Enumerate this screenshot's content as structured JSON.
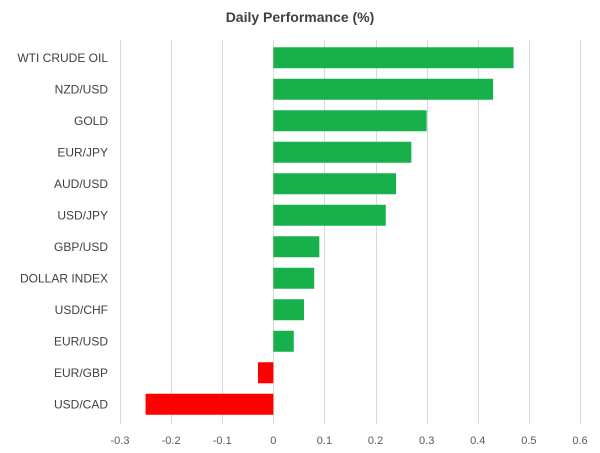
{
  "chart_data": {
    "type": "bar",
    "orientation": "horizontal",
    "title": "Daily Performance (%)",
    "xlabel": "",
    "ylabel": "",
    "categories": [
      "WTI CRUDE OIL",
      "NZD/USD",
      "GOLD",
      "EUR/JPY",
      "AUD/USD",
      "USD/JPY",
      "GBP/USD",
      "DOLLAR INDEX",
      "USD/CHF",
      "EUR/USD",
      "EUR/GBP",
      "USD/CAD"
    ],
    "values": [
      0.47,
      0.43,
      0.3,
      0.27,
      0.24,
      0.22,
      0.09,
      0.08,
      0.06,
      0.04,
      -0.03,
      -0.25
    ],
    "xlim": [
      -0.3,
      0.6
    ],
    "xticks": [
      -0.3,
      -0.2,
      -0.1,
      0,
      0.1,
      0.2,
      0.3,
      0.4,
      0.5,
      0.6
    ],
    "tick_labels": [
      "-0.3",
      "-0.2",
      "-0.1",
      "0",
      "0.1",
      "0.2",
      "0.3",
      "0.4",
      "0.5",
      "0.6"
    ],
    "grid": true,
    "legend": "none",
    "colors": {
      "positive": "#18b04b",
      "negative": "#ff0000",
      "grid": "#d9d9d9",
      "text": "#404040"
    }
  }
}
